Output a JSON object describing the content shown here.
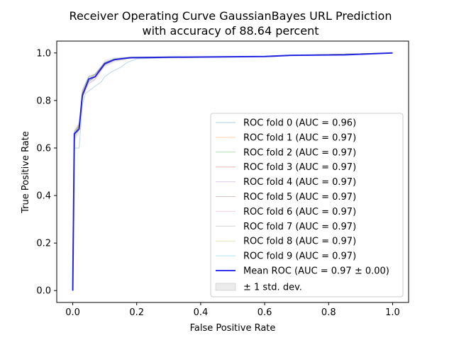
{
  "chart_data": {
    "type": "line",
    "title": [
      "Receiver Operating Curve GaussianBayes URL Prediction",
      "with accuracy of 88.64 percent"
    ],
    "xlabel": "False Positive Rate",
    "ylabel": "True Positive Rate",
    "xlim": [
      -0.05,
      1.05
    ],
    "ylim": [
      -0.05,
      1.05
    ],
    "xticks": [
      0.0,
      0.2,
      0.4,
      0.6,
      0.8,
      1.0
    ],
    "yticks": [
      0.0,
      0.2,
      0.4,
      0.6,
      0.8,
      1.0
    ],
    "tick_labels": [
      "0.0",
      "0.2",
      "0.4",
      "0.6",
      "0.8",
      "1.0"
    ],
    "grid": false,
    "legend_position": "lower-right",
    "folds": [
      {
        "name": "ROC fold 0 (AUC = 0.96)",
        "color": "#1f77b4",
        "points": [
          [
            0,
            0
          ],
          [
            0.005,
            0.6
          ],
          [
            0.02,
            0.6
          ],
          [
            0.03,
            0.78
          ],
          [
            0.04,
            0.83
          ],
          [
            0.05,
            0.84
          ],
          [
            0.07,
            0.86
          ],
          [
            0.08,
            0.87
          ],
          [
            0.09,
            0.88
          ],
          [
            0.1,
            0.9
          ],
          [
            0.12,
            0.92
          ],
          [
            0.15,
            0.94
          ],
          [
            0.17,
            0.96
          ],
          [
            0.2,
            0.975
          ],
          [
            0.3,
            0.98
          ],
          [
            0.6,
            0.985
          ],
          [
            0.7,
            0.99
          ],
          [
            0.9,
            0.995
          ],
          [
            1,
            1
          ]
        ]
      },
      {
        "name": "ROC fold 1 (AUC = 0.97)",
        "color": "#ff7f0e",
        "points": [
          [
            0,
            0
          ],
          [
            0.005,
            0.65
          ],
          [
            0.02,
            0.7
          ],
          [
            0.03,
            0.83
          ],
          [
            0.05,
            0.88
          ],
          [
            0.07,
            0.9
          ],
          [
            0.1,
            0.95
          ],
          [
            0.13,
            0.97
          ],
          [
            0.18,
            0.98
          ],
          [
            0.6,
            0.985
          ],
          [
            0.7,
            0.99
          ],
          [
            1,
            1
          ]
        ]
      },
      {
        "name": "ROC fold 2 (AUC = 0.97)",
        "color": "#2ca02c",
        "points": [
          [
            0,
            0
          ],
          [
            0.005,
            0.67
          ],
          [
            0.02,
            0.69
          ],
          [
            0.03,
            0.84
          ],
          [
            0.05,
            0.9
          ],
          [
            0.07,
            0.91
          ],
          [
            0.1,
            0.96
          ],
          [
            0.13,
            0.975
          ],
          [
            0.18,
            0.982
          ],
          [
            0.6,
            0.985
          ],
          [
            0.7,
            0.99
          ],
          [
            1,
            1
          ]
        ]
      },
      {
        "name": "ROC fold 3 (AUC = 0.97)",
        "color": "#d62728",
        "points": [
          [
            0,
            0
          ],
          [
            0.005,
            0.66
          ],
          [
            0.02,
            0.68
          ],
          [
            0.03,
            0.83
          ],
          [
            0.05,
            0.89
          ],
          [
            0.07,
            0.9
          ],
          [
            0.1,
            0.955
          ],
          [
            0.13,
            0.972
          ],
          [
            0.18,
            0.98
          ],
          [
            0.6,
            0.985
          ],
          [
            0.7,
            0.99
          ],
          [
            1,
            1
          ]
        ]
      },
      {
        "name": "ROC fold 4 (AUC = 0.97)",
        "color": "#9467bd",
        "points": [
          [
            0,
            0
          ],
          [
            0.005,
            0.65
          ],
          [
            0.02,
            0.7
          ],
          [
            0.03,
            0.82
          ],
          [
            0.05,
            0.88
          ],
          [
            0.07,
            0.9
          ],
          [
            0.1,
            0.95
          ],
          [
            0.13,
            0.97
          ],
          [
            0.18,
            0.98
          ],
          [
            0.6,
            0.985
          ],
          [
            0.7,
            0.99
          ],
          [
            1,
            1
          ]
        ]
      },
      {
        "name": "ROC fold 5 (AUC = 0.97)",
        "color": "#8c564b",
        "points": [
          [
            0,
            0
          ],
          [
            0.005,
            0.66
          ],
          [
            0.02,
            0.69
          ],
          [
            0.03,
            0.83
          ],
          [
            0.05,
            0.89
          ],
          [
            0.07,
            0.91
          ],
          [
            0.1,
            0.955
          ],
          [
            0.13,
            0.972
          ],
          [
            0.18,
            0.98
          ],
          [
            0.6,
            0.985
          ],
          [
            0.7,
            0.99
          ],
          [
            1,
            1
          ]
        ]
      },
      {
        "name": "ROC fold 6 (AUC = 0.97)",
        "color": "#e377c2",
        "points": [
          [
            0,
            0
          ],
          [
            0.005,
            0.64
          ],
          [
            0.02,
            0.68
          ],
          [
            0.03,
            0.82
          ],
          [
            0.05,
            0.87
          ],
          [
            0.07,
            0.89
          ],
          [
            0.1,
            0.95
          ],
          [
            0.13,
            0.968
          ],
          [
            0.18,
            0.98
          ],
          [
            0.6,
            0.985
          ],
          [
            0.7,
            0.99
          ],
          [
            1,
            1
          ]
        ]
      },
      {
        "name": "ROC fold 7 (AUC = 0.97)",
        "color": "#7f7f7f",
        "points": [
          [
            0,
            0
          ],
          [
            0.005,
            0.67
          ],
          [
            0.02,
            0.7
          ],
          [
            0.03,
            0.84
          ],
          [
            0.05,
            0.9
          ],
          [
            0.07,
            0.91
          ],
          [
            0.1,
            0.96
          ],
          [
            0.13,
            0.975
          ],
          [
            0.18,
            0.982
          ],
          [
            0.6,
            0.985
          ],
          [
            0.7,
            0.99
          ],
          [
            1,
            1
          ]
        ]
      },
      {
        "name": "ROC fold 8 (AUC = 0.97)",
        "color": "#bcbd22",
        "points": [
          [
            0,
            0
          ],
          [
            0.005,
            0.66
          ],
          [
            0.02,
            0.69
          ],
          [
            0.03,
            0.83
          ],
          [
            0.05,
            0.89
          ],
          [
            0.07,
            0.9
          ],
          [
            0.1,
            0.955
          ],
          [
            0.13,
            0.972
          ],
          [
            0.18,
            0.98
          ],
          [
            0.6,
            0.985
          ],
          [
            0.7,
            0.99
          ],
          [
            1,
            1
          ]
        ]
      },
      {
        "name": "ROC fold 9 (AUC = 0.97)",
        "color": "#17becf",
        "points": [
          [
            0,
            0
          ],
          [
            0.005,
            0.65
          ],
          [
            0.02,
            0.68
          ],
          [
            0.03,
            0.82
          ],
          [
            0.05,
            0.88
          ],
          [
            0.07,
            0.9
          ],
          [
            0.1,
            0.95
          ],
          [
            0.13,
            0.97
          ],
          [
            0.18,
            0.98
          ],
          [
            0.6,
            0.985
          ],
          [
            0.7,
            0.99
          ],
          [
            1,
            1
          ]
        ]
      }
    ],
    "mean": {
      "name": "Mean ROC (AUC = 0.97 ± 0.00)",
      "color": "#0000ee",
      "points": [
        [
          0,
          0
        ],
        [
          0.005,
          0.66
        ],
        [
          0.02,
          0.68
        ],
        [
          0.03,
          0.82
        ],
        [
          0.05,
          0.89
        ],
        [
          0.07,
          0.9
        ],
        [
          0.1,
          0.955
        ],
        [
          0.13,
          0.972
        ],
        [
          0.18,
          0.98
        ],
        [
          0.3,
          0.982
        ],
        [
          0.6,
          0.985
        ],
        [
          0.68,
          0.99
        ],
        [
          0.85,
          0.992
        ],
        [
          1,
          1
        ]
      ]
    },
    "std_band": {
      "name": "± 1 std. dev.",
      "color": "#999999",
      "upper": [
        [
          0,
          0
        ],
        [
          0.005,
          0.68
        ],
        [
          0.02,
          0.71
        ],
        [
          0.03,
          0.85
        ],
        [
          0.05,
          0.905
        ],
        [
          0.07,
          0.915
        ],
        [
          0.1,
          0.97
        ],
        [
          0.13,
          0.982
        ],
        [
          0.18,
          0.985
        ],
        [
          0.6,
          0.988
        ],
        [
          0.68,
          0.992
        ],
        [
          1,
          1
        ]
      ],
      "lower": [
        [
          0,
          0
        ],
        [
          0.005,
          0.63
        ],
        [
          0.02,
          0.66
        ],
        [
          0.03,
          0.8
        ],
        [
          0.05,
          0.87
        ],
        [
          0.07,
          0.885
        ],
        [
          0.1,
          0.94
        ],
        [
          0.13,
          0.96
        ],
        [
          0.18,
          0.975
        ],
        [
          0.6,
          0.982
        ],
        [
          0.68,
          0.988
        ],
        [
          1,
          1
        ]
      ]
    }
  }
}
